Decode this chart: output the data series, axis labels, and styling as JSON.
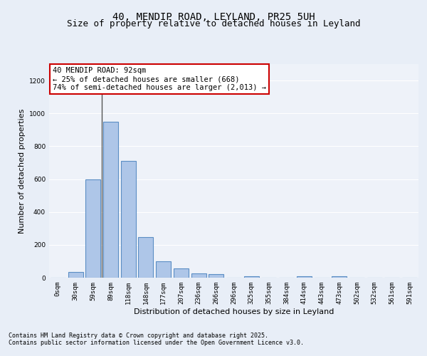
{
  "title": "40, MENDIP ROAD, LEYLAND, PR25 5UH",
  "subtitle": "Size of property relative to detached houses in Leyland",
  "xlabel": "Distribution of detached houses by size in Leyland",
  "ylabel": "Number of detached properties",
  "bins": [
    "0sqm",
    "30sqm",
    "59sqm",
    "89sqm",
    "118sqm",
    "148sqm",
    "177sqm",
    "207sqm",
    "236sqm",
    "266sqm",
    "296sqm",
    "325sqm",
    "355sqm",
    "384sqm",
    "414sqm",
    "443sqm",
    "473sqm",
    "502sqm",
    "532sqm",
    "561sqm",
    "591sqm"
  ],
  "values": [
    0,
    35,
    600,
    950,
    710,
    245,
    100,
    55,
    25,
    20,
    0,
    10,
    0,
    0,
    10,
    0,
    10,
    0,
    0,
    0,
    0
  ],
  "bar_color": "#aec6e8",
  "bar_edge_color": "#5b8ec4",
  "ylim": [
    0,
    1300
  ],
  "yticks": [
    0,
    200,
    400,
    600,
    800,
    1000,
    1200
  ],
  "annotation_text": "40 MENDIP ROAD: 92sqm\n← 25% of detached houses are smaller (668)\n74% of semi-detached houses are larger (2,013) →",
  "annotation_box_color": "#ffffff",
  "annotation_box_edge_color": "#cc0000",
  "footer1": "Contains HM Land Registry data © Crown copyright and database right 2025.",
  "footer2": "Contains public sector information licensed under the Open Government Licence v3.0.",
  "bg_color": "#e8eef7",
  "plot_bg_color": "#eef2f9",
  "grid_color": "#ffffff",
  "title_fontsize": 10,
  "subtitle_fontsize": 9,
  "axis_label_fontsize": 8,
  "tick_fontsize": 6.5,
  "annotation_fontsize": 7.5,
  "footer_fontsize": 6.0,
  "vline_x": 2.5,
  "vline_color": "#555555"
}
